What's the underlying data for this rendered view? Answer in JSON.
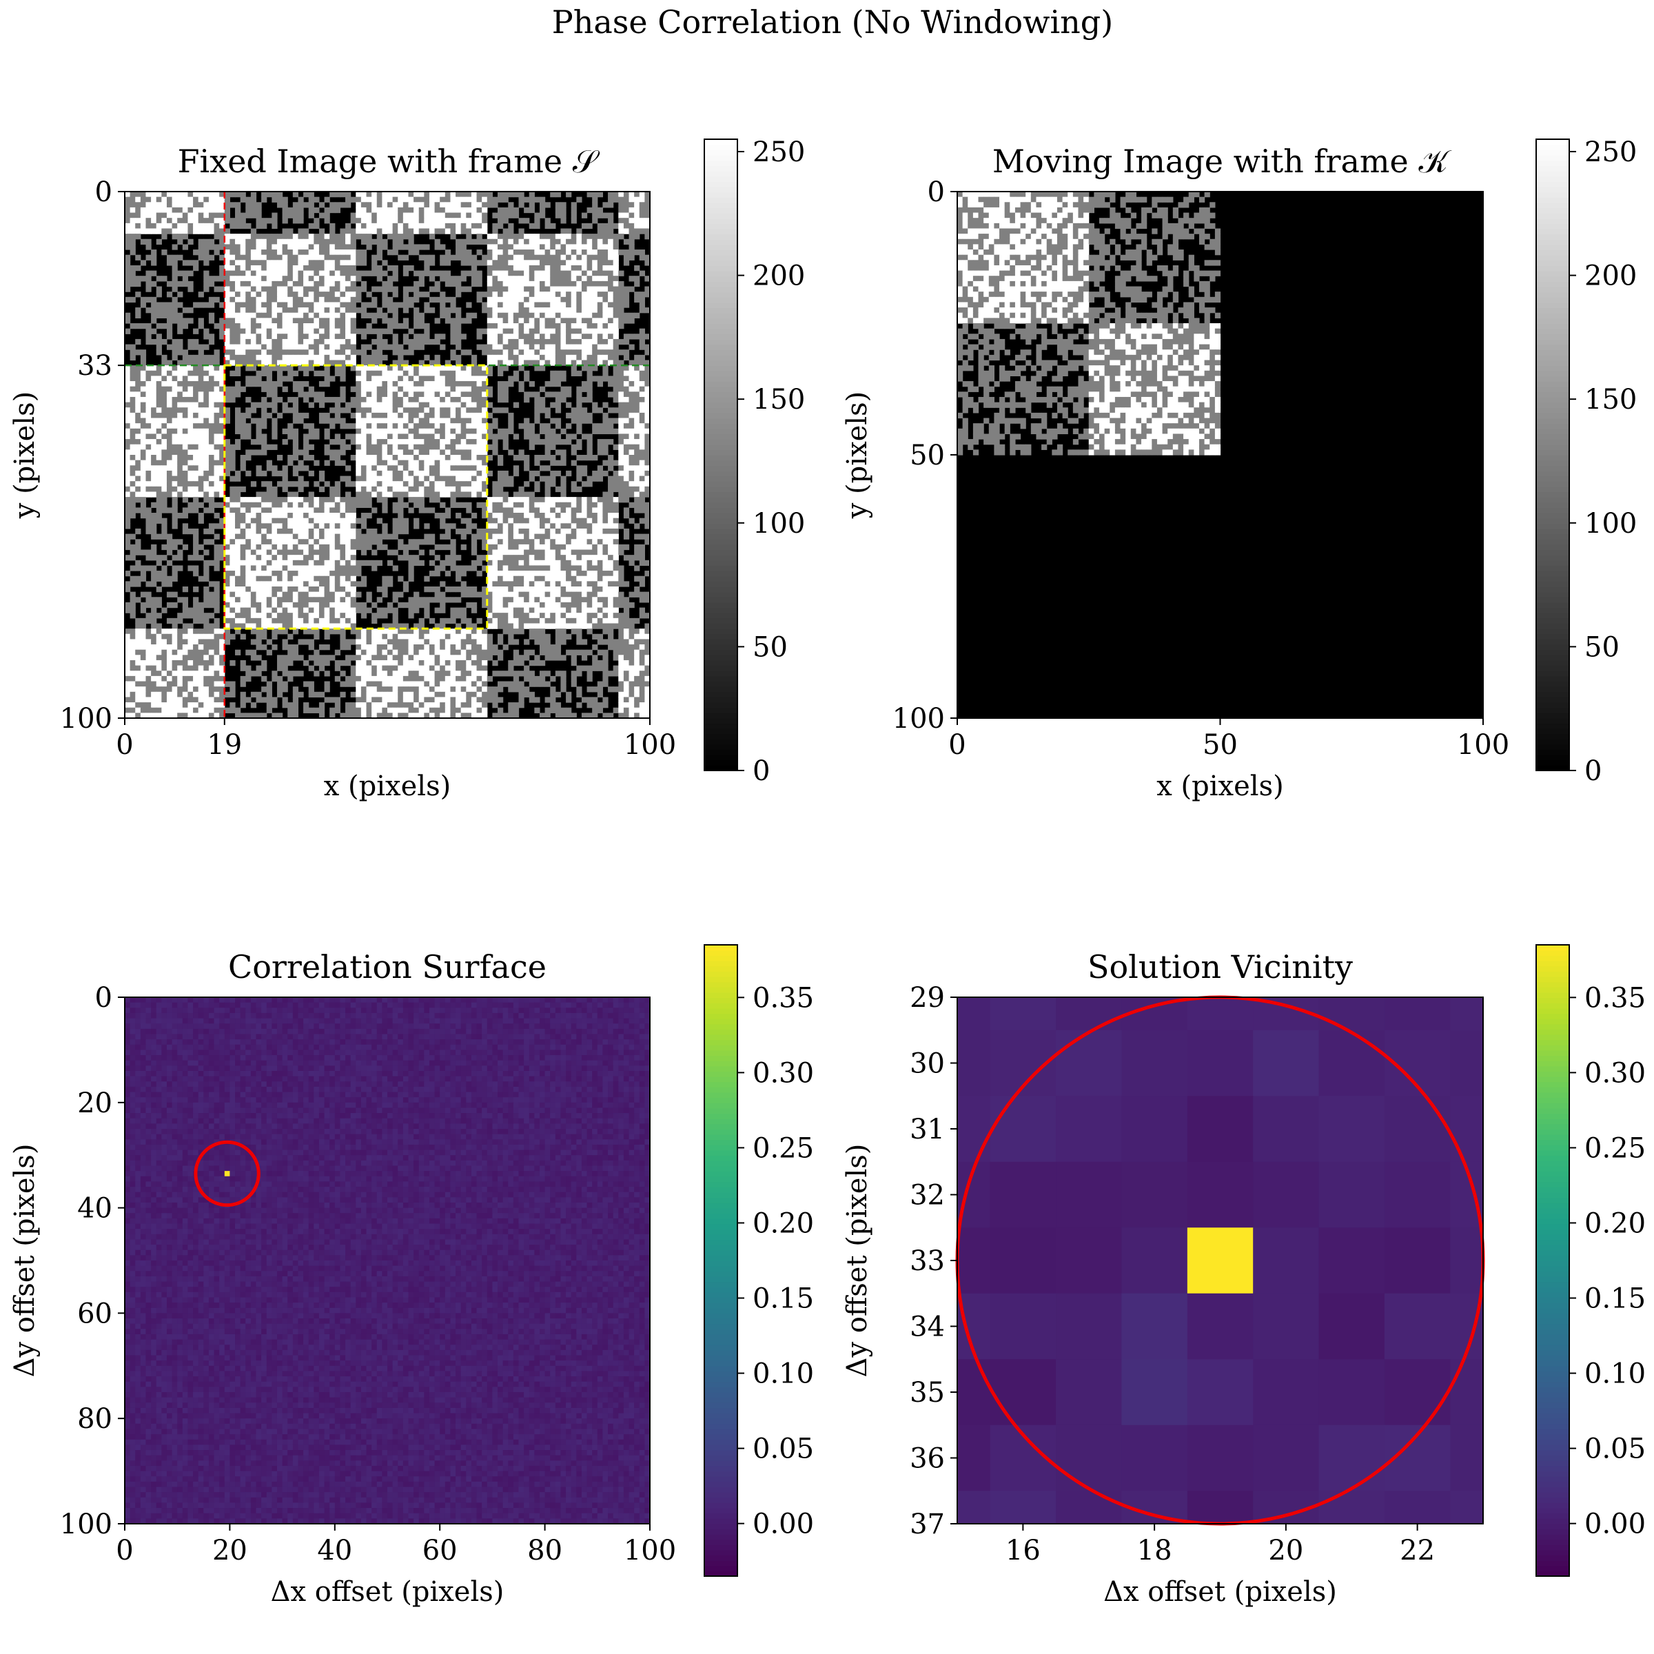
{
  "figure": {
    "suptitle": "Phase Correlation (No Windowing)"
  },
  "colors": {
    "marker_red": "#ee0000",
    "marker_green": "#228b22",
    "frame_yellow": "#ffff00",
    "viridis_peak": "#fde725"
  },
  "chart_data": [
    {
      "type": "heatmap",
      "id": "fixed",
      "title": "Fixed Image with frame 𝒮",
      "xlabel": "x (pixels)",
      "ylabel": "y (pixels)",
      "xlim": [
        0,
        100
      ],
      "ylim": [
        100,
        0
      ],
      "xticks": [
        0,
        100
      ],
      "yticks": [
        0,
        100
      ],
      "highlight_ticks": [
        {
          "axis": "x",
          "value": 19,
          "label": "19",
          "color": "#ee0000"
        },
        {
          "axis": "y",
          "value": 33,
          "label": "33",
          "color": "#228b22"
        }
      ],
      "guides": [
        {
          "orientation": "vertical",
          "value": 19,
          "color": "#ee0000",
          "style": "dashed"
        },
        {
          "orientation": "horizontal",
          "value": 33,
          "color": "#228b22",
          "style": "dashed"
        }
      ],
      "frame_box": {
        "x": [
          19,
          69
        ],
        "y": [
          33,
          83
        ],
        "color": "#ffff00",
        "style": "dashed"
      },
      "checker_block": 25,
      "block_pattern": [
        [
          0,
          1,
          0,
          1
        ],
        [
          1,
          0,
          1,
          0
        ],
        [
          0,
          1,
          0,
          1
        ],
        [
          1,
          0,
          1,
          0
        ]
      ],
      "block_offset": {
        "x": 19,
        "y": 33
      },
      "colormap": "gray",
      "colorbar": {
        "range": [
          0,
          255
        ],
        "ticks": [
          0,
          50,
          100,
          150,
          200,
          250
        ]
      }
    },
    {
      "type": "heatmap",
      "id": "moving",
      "title": "Moving Image with frame 𝒦",
      "xlabel": "x (pixels)",
      "ylabel": "y (pixels)",
      "xlim": [
        0,
        100
      ],
      "ylim": [
        100,
        0
      ],
      "xticks": [
        0,
        50,
        100
      ],
      "yticks": [
        0,
        50,
        100
      ],
      "content_extent": {
        "x": [
          0,
          50
        ],
        "y": [
          0,
          50
        ]
      },
      "checker_block": 25,
      "block_pattern": [
        [
          1,
          0
        ],
        [
          0,
          1
        ]
      ],
      "colormap": "gray",
      "colorbar": {
        "range": [
          0,
          255
        ],
        "ticks": [
          0,
          50,
          100,
          150,
          200,
          250
        ]
      }
    },
    {
      "type": "heatmap",
      "id": "surface",
      "title": "Correlation Surface",
      "xlabel": "Δx offset (pixels)",
      "ylabel": "Δy offset (pixels)",
      "xlim": [
        0,
        100
      ],
      "ylim": [
        100,
        0
      ],
      "xticks": [
        0,
        20,
        40,
        60,
        80,
        100
      ],
      "yticks": [
        0,
        20,
        40,
        60,
        80,
        100
      ],
      "peak": {
        "x": 19,
        "y": 33,
        "value": 0.385
      },
      "circle": {
        "x": 19,
        "y": 33,
        "radius": 4,
        "color": "#ee0000"
      },
      "background_range": [
        -0.01,
        0.01
      ],
      "colormap": "viridis",
      "colorbar": {
        "range": [
          -0.035,
          0.385
        ],
        "ticks": [
          0.0,
          0.05,
          0.1,
          0.15,
          0.2,
          0.25,
          0.3,
          0.35
        ],
        "tick_labels": [
          "0.00",
          "0.05",
          "0.10",
          "0.15",
          "0.20",
          "0.25",
          "0.30",
          "0.35"
        ]
      }
    },
    {
      "type": "heatmap",
      "id": "vicinity",
      "title": "Solution Vicinity",
      "xlabel": "Δx offset (pixels)",
      "ylabel": "Δy offset (pixels)",
      "xlim": [
        15,
        23
      ],
      "ylim": [
        37,
        29
      ],
      "xticks": [
        16,
        18,
        20,
        22
      ],
      "yticks": [
        29,
        30,
        31,
        32,
        33,
        34,
        35,
        36,
        37
      ],
      "x_cells": [
        15,
        16,
        17,
        18,
        19,
        20,
        21,
        22,
        23
      ],
      "y_cells": [
        29,
        30,
        31,
        32,
        33,
        34,
        35,
        36,
        37
      ],
      "values": [
        [
          0.005,
          0.01,
          0.003,
          0.002,
          0.006,
          0.006,
          0.004,
          0.002,
          0.007
        ],
        [
          0.004,
          0.007,
          0.01,
          0.004,
          0.002,
          0.014,
          0.002,
          0.006,
          0.004
        ],
        [
          0.006,
          0.01,
          0.006,
          0.002,
          -0.008,
          0.004,
          0.008,
          0.004,
          0.006
        ],
        [
          0.001,
          -0.004,
          -0.004,
          -0.002,
          -0.005,
          -0.001,
          0.004,
          0.001,
          0.006
        ],
        [
          -0.005,
          -0.006,
          -0.005,
          0.003,
          0.385,
          0.004,
          -0.004,
          -0.006,
          0.004
        ],
        [
          0.007,
          0.004,
          0.003,
          0.017,
          0.0,
          0.004,
          -0.008,
          0.007,
          0.007
        ],
        [
          -0.006,
          -0.008,
          0.003,
          0.02,
          0.01,
          0.001,
          0.0,
          -0.004,
          0.004
        ],
        [
          -0.004,
          0.006,
          0.003,
          0.002,
          -0.001,
          0.001,
          0.01,
          0.012,
          0.004
        ],
        [
          0.008,
          0.012,
          0.002,
          0.007,
          -0.008,
          0.003,
          0.008,
          0.005,
          0.008
        ]
      ],
      "circle": {
        "x": 19,
        "y": 33,
        "radius": 4,
        "color": "#ee0000"
      },
      "colormap": "viridis",
      "colorbar": {
        "range": [
          -0.035,
          0.385
        ],
        "ticks": [
          0.0,
          0.05,
          0.1,
          0.15,
          0.2,
          0.25,
          0.3,
          0.35
        ],
        "tick_labels": [
          "0.00",
          "0.05",
          "0.10",
          "0.15",
          "0.20",
          "0.25",
          "0.30",
          "0.35"
        ]
      }
    }
  ]
}
